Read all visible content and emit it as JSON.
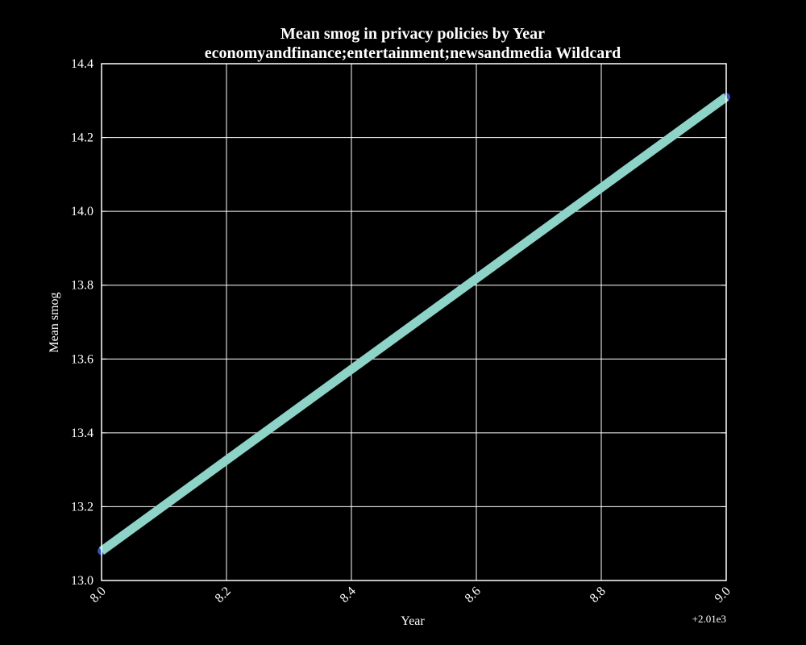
{
  "chart_data": {
    "type": "line",
    "title": "Mean smog in privacy policies by Year",
    "subtitle": "economyandfinance;entertainment;newsandmedia Wildcard",
    "xlabel": "Year",
    "ylabel": "Mean smog",
    "x_offset_label": "+2.01e3",
    "xlim": [
      2018.0,
      2019.0
    ],
    "ylim": [
      13.0,
      14.4
    ],
    "x_ticks": [
      2018.0,
      2018.2,
      2018.4,
      2018.6,
      2018.8,
      2019.0
    ],
    "x_tick_labels": [
      "8.0",
      "8.2",
      "8.4",
      "8.6",
      "8.8",
      "9.0"
    ],
    "y_ticks": [
      13.0,
      13.2,
      13.4,
      13.6,
      13.8,
      14.0,
      14.2,
      14.4
    ],
    "y_tick_labels": [
      "13.0",
      "13.2",
      "13.4",
      "13.6",
      "13.8",
      "14.0",
      "14.2",
      "14.4"
    ],
    "grid": true,
    "series": [
      {
        "x": [
          2018,
          2019
        ],
        "y": [
          13.08,
          14.31
        ],
        "color": "#8dd3c7",
        "marker_color": "#3b4cc0"
      }
    ]
  },
  "colors": {
    "background": "#000000",
    "foreground": "#ffffff"
  }
}
